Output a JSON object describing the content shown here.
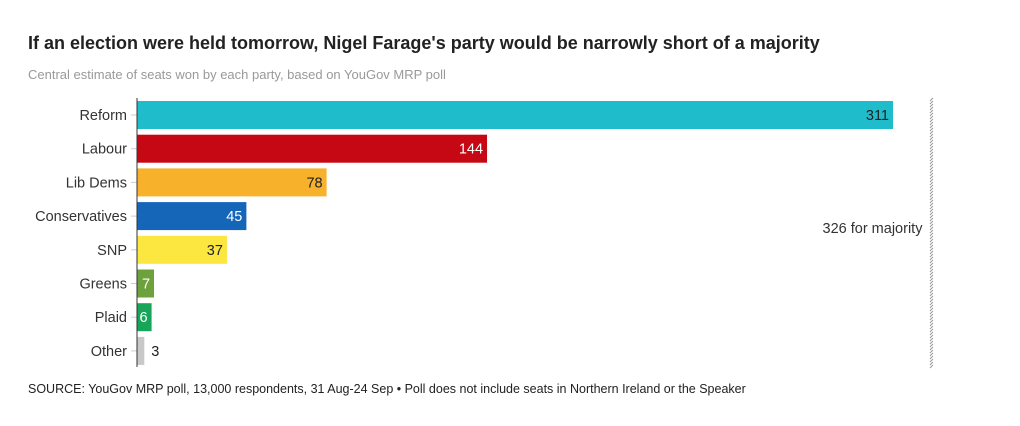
{
  "title": "If an election were held tomorrow, Nigel Farage's party would be narrowly short of a majority",
  "subtitle": "Central estimate of seats won by each party, based on YouGov MRP poll",
  "source": "SOURCE: YouGov MRP poll, 13,000 respondents, 31 Aug-24 Sep • Poll does not include seats in Northern Ireland or the Speaker",
  "chart_data": {
    "type": "bar",
    "orientation": "horizontal",
    "categories": [
      "Reform",
      "Labour",
      "Lib Dems",
      "Conservatives",
      "SNP",
      "Greens",
      "Plaid",
      "Other"
    ],
    "values": [
      311,
      144,
      78,
      45,
      37,
      7,
      6,
      3
    ],
    "colors": [
      "#1fbccb",
      "#c50813",
      "#f7b12a",
      "#1565b8",
      "#fce640",
      "#6ca13b",
      "#17a55a",
      "#c8c8c8"
    ],
    "label_colors": [
      "#222222",
      "#ffffff",
      "#222222",
      "#ffffff",
      "#222222",
      "#ffffff",
      "#ffffff",
      "#222222"
    ],
    "xlim": [
      0,
      326
    ],
    "reference_line": {
      "value": 326,
      "label": "326 for majority"
    },
    "xlabel": "",
    "ylabel": "",
    "grid": false
  }
}
